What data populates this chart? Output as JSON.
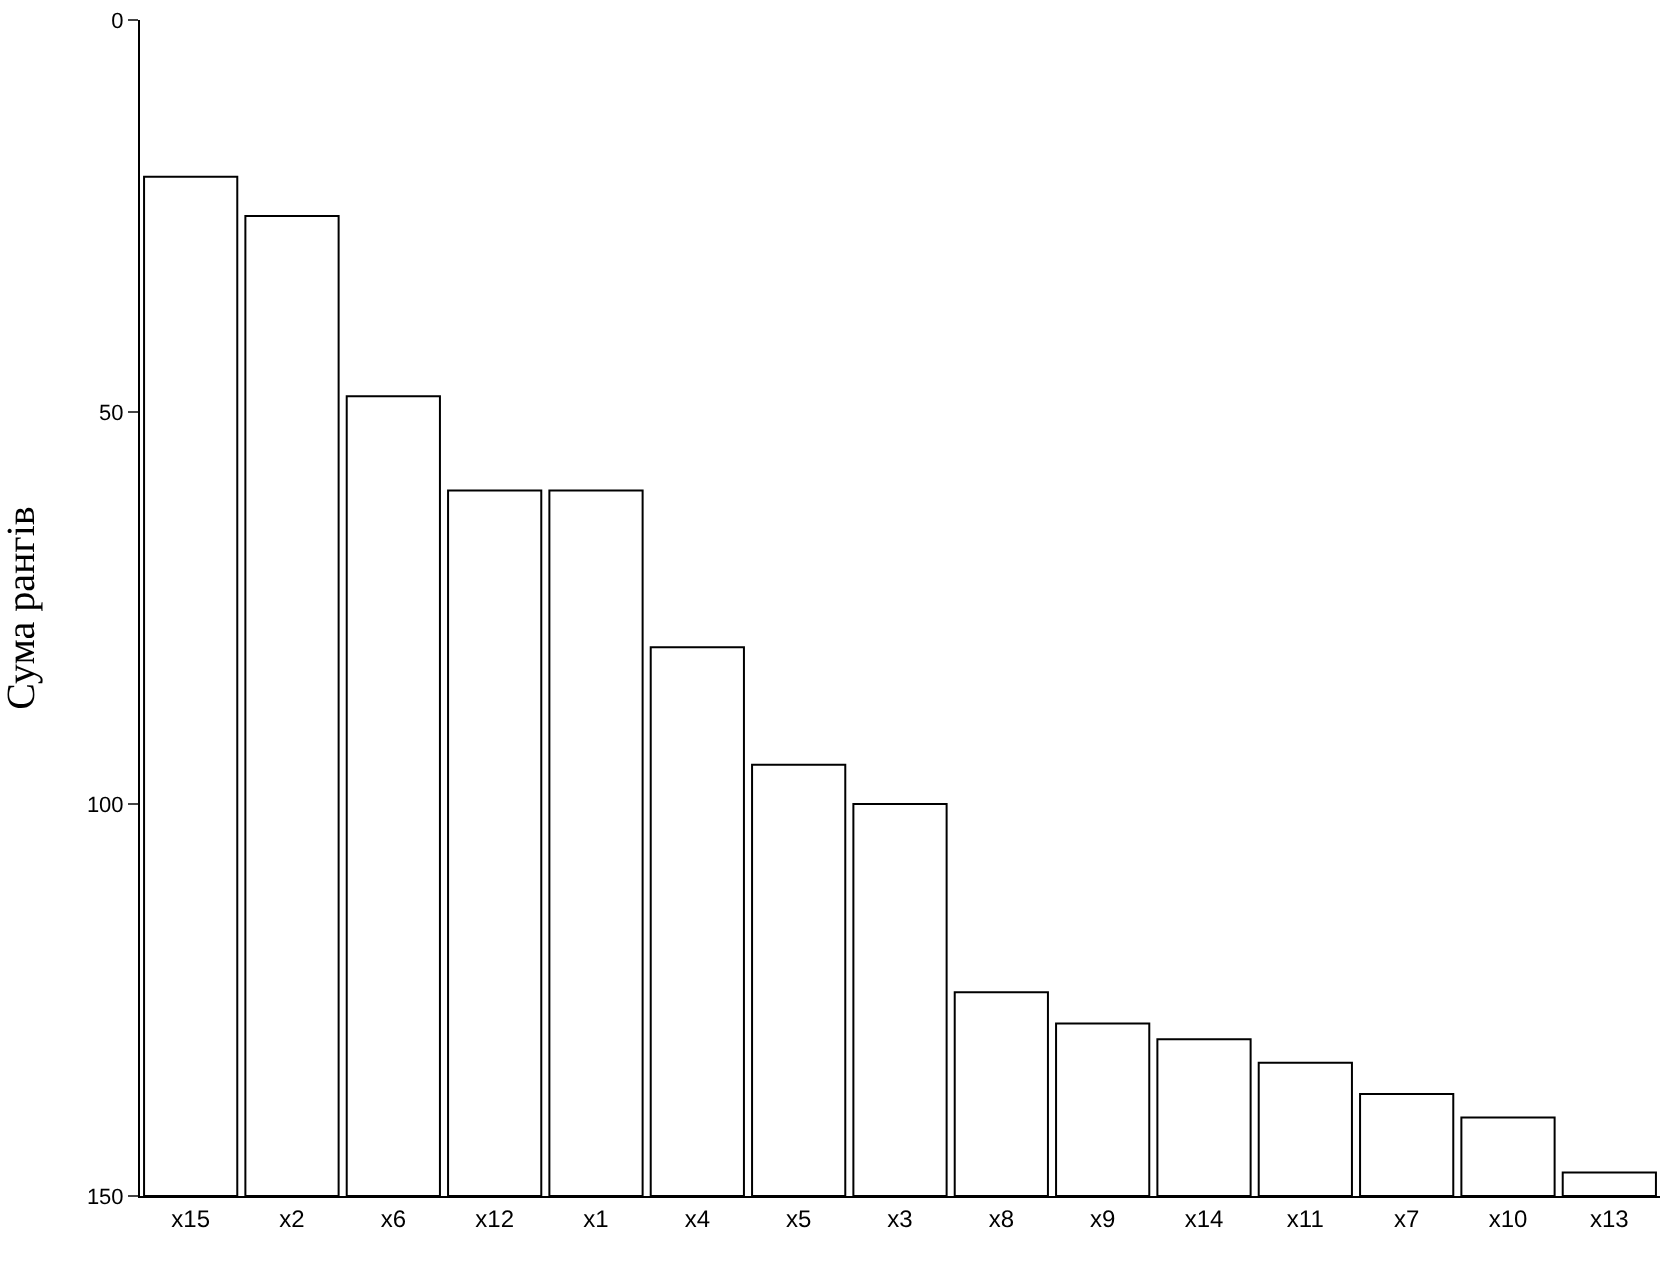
{
  "chart_data": {
    "type": "bar",
    "ylabel": "Сума рангів",
    "categories": [
      "x15",
      "x2",
      "x6",
      "x12",
      "x1",
      "x4",
      "x5",
      "x3",
      "x8",
      "x9",
      "x14",
      "x11",
      "x7",
      "x10",
      "x13"
    ],
    "base": [
      150,
      150,
      150,
      150,
      150,
      150,
      150,
      150,
      150,
      150,
      150,
      150,
      150,
      150,
      150
    ],
    "values": [
      -130,
      -125,
      -102,
      -90,
      -90,
      -70,
      -55,
      -50,
      -26,
      -22,
      -20,
      -17,
      -13,
      -10,
      -3
    ],
    "color": "#ffffff",
    "ylim": [
      150,
      0
    ],
    "yticks": [
      0,
      50,
      100,
      150
    ],
    "grid": false
  }
}
